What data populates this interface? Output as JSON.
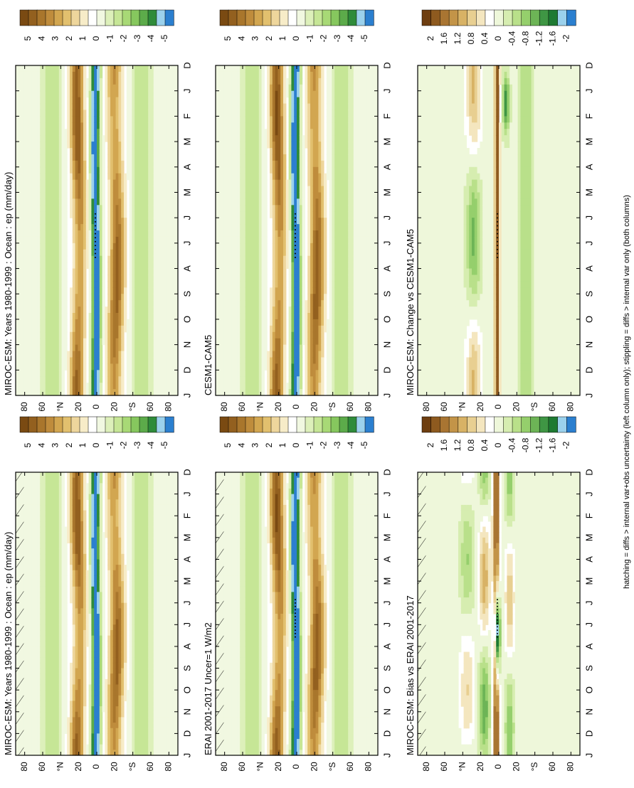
{
  "figure": {
    "footnote": "hatching = diffs > internal var+obs uncertainty (left column only); stippling = diffs > internal var only (both columns)"
  },
  "colors": {
    "full_scale": [
      "#7a4a12",
      "#93601f",
      "#a9762c",
      "#bf8c3c",
      "#d2a650",
      "#e2c06e",
      "#eed69c",
      "#f7ecc8",
      "#ffffff",
      "#f1f8e1",
      "#ddf0ba",
      "#c6e696",
      "#a8d976",
      "#86c75e",
      "#5cab4a",
      "#2f8b3a",
      "#9bd1ec",
      "#2b7fcf"
    ],
    "diff_scale": [
      "#6e3e10",
      "#8e5a1f",
      "#a97532",
      "#c39448",
      "#d8b265",
      "#e8cf91",
      "#f4e6bf",
      "#ffffff",
      "#eef7da",
      "#d6edb0",
      "#b9e08a",
      "#95cf6c",
      "#6db456",
      "#3f9644",
      "#1e7a32",
      "#9bd1ec",
      "#2b7fcf"
    ],
    "hatch": "#000000",
    "stipple": "#000000"
  },
  "common": {
    "month_labels": [
      "D",
      "J",
      "F",
      "M",
      "A",
      "M",
      "J",
      "J",
      "A",
      "S",
      "O",
      "N",
      "D",
      "J"
    ],
    "lat_labels": [
      "80",
      "60",
      "°N",
      "20",
      "0",
      "20",
      "°S",
      "60",
      "80"
    ],
    "full_colorbar_labels": [
      "5",
      "4",
      "3",
      "2",
      "1",
      "0",
      "-1",
      "-2",
      "-3",
      "-4",
      "-5"
    ],
    "diff_colorbar_labels": [
      "2",
      "1.6",
      "1.2",
      "0.8",
      "0.4",
      "0",
      "-0.4",
      "-0.8",
      "-1.2",
      "-1.6",
      "-2"
    ]
  },
  "chart_data": [
    {
      "type": "heatmap",
      "title": "MIROC-ESM: Years 1980-1999 : Ocean : ep (mm/day)",
      "xlabel": "",
      "ylabel": "",
      "x": [
        "D",
        "J",
        "F",
        "M",
        "A",
        "M",
        "J",
        "J",
        "A",
        "S",
        "O",
        "N",
        "D",
        "J"
      ],
      "y": [
        "80",
        "60",
        "°N",
        "20",
        "0",
        "20",
        "°S",
        "60",
        "80"
      ],
      "colorbar": [
        "5",
        "4",
        "3",
        "2",
        "1",
        "0",
        "-1",
        "-2",
        "-3",
        "-4",
        "-5"
      ],
      "zlim": [
        -5,
        5
      ],
      "features": {
        "itcz_max_mm_day": 5,
        "equatorial_min_mm_day": -5,
        "subtropical_max_mm_day": 4
      },
      "hatching": true,
      "stippling": false
    },
    {
      "type": "heatmap",
      "title": "ERAI 2001-2017 Uncer=1 W/m2",
      "xlabel": "",
      "ylabel": "",
      "x": [
        "D",
        "J",
        "F",
        "M",
        "A",
        "M",
        "J",
        "J",
        "A",
        "S",
        "O",
        "N",
        "D",
        "J"
      ],
      "y": [
        "80",
        "60",
        "°N",
        "20",
        "0",
        "20",
        "°S",
        "60",
        "80"
      ],
      "colorbar": [
        "5",
        "4",
        "3",
        "2",
        "1",
        "0",
        "-1",
        "-2",
        "-3",
        "-4",
        "-5"
      ],
      "zlim": [
        -5,
        5
      ],
      "features": {
        "itcz_max_mm_day": 5,
        "equatorial_min_mm_day": -5,
        "subtropical_max_mm_day": 4
      },
      "hatching": true,
      "stippling": true
    },
    {
      "type": "heatmap",
      "title": "MIROC-ESM: Bias vs ERAI 2001-2017",
      "xlabel": "",
      "ylabel": "",
      "x": [
        "D",
        "J",
        "F",
        "M",
        "A",
        "M",
        "J",
        "J",
        "A",
        "S",
        "O",
        "N",
        "D",
        "J"
      ],
      "y": [
        "80",
        "60",
        "°N",
        "20",
        "0",
        "20",
        "°S",
        "60",
        "80"
      ],
      "colorbar": [
        "2",
        "1.6",
        "1.2",
        "0.8",
        "0.4",
        "0",
        "-0.4",
        "-0.8",
        "-1.2",
        "-1.6",
        "-2"
      ],
      "zlim": [
        -2,
        2
      ],
      "hatching": true,
      "stippling": true
    },
    {
      "type": "heatmap",
      "title": "MIROC-ESM: Years 1980-1999 : Ocean : ep (mm/day)",
      "xlabel": "",
      "ylabel": "",
      "x": [
        "D",
        "J",
        "F",
        "M",
        "A",
        "M",
        "J",
        "J",
        "A",
        "S",
        "O",
        "N",
        "D",
        "J"
      ],
      "y": [
        "80",
        "60",
        "°N",
        "20",
        "0",
        "20",
        "°S",
        "60",
        "80"
      ],
      "colorbar": [
        "5",
        "4",
        "3",
        "2",
        "1",
        "0",
        "-1",
        "-2",
        "-3",
        "-4",
        "-5"
      ],
      "zlim": [
        -5,
        5
      ],
      "hatching": false,
      "stippling": true
    },
    {
      "type": "heatmap",
      "title": "CESM1-CAM5",
      "xlabel": "",
      "ylabel": "",
      "x": [
        "D",
        "J",
        "F",
        "M",
        "A",
        "M",
        "J",
        "J",
        "A",
        "S",
        "O",
        "N",
        "D",
        "J"
      ],
      "y": [
        "80",
        "60",
        "°N",
        "20",
        "0",
        "20",
        "°S",
        "60",
        "80"
      ],
      "colorbar": [
        "5",
        "4",
        "3",
        "2",
        "1",
        "0",
        "-1",
        "-2",
        "-3",
        "-4",
        "-5"
      ],
      "zlim": [
        -5,
        5
      ],
      "hatching": false,
      "stippling": true
    },
    {
      "type": "heatmap",
      "title": "MIROC-ESM: Change vs CESM1-CAM5",
      "xlabel": "",
      "ylabel": "",
      "x": [
        "D",
        "J",
        "F",
        "M",
        "A",
        "M",
        "J",
        "J",
        "A",
        "S",
        "O",
        "N",
        "D",
        "J"
      ],
      "y": [
        "80",
        "60",
        "°N",
        "20",
        "0",
        "20",
        "°S",
        "60",
        "80"
      ],
      "colorbar": [
        "2",
        "1.6",
        "1.2",
        "0.8",
        "0.4",
        "0",
        "-0.4",
        "-0.8",
        "-1.2",
        "-1.6",
        "-2"
      ],
      "zlim": [
        -2,
        2
      ],
      "hatching": false,
      "stippling": true
    }
  ]
}
